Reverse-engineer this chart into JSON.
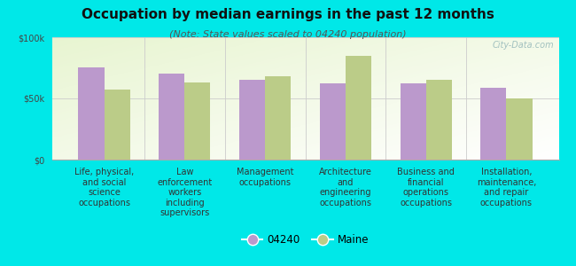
{
  "title": "Occupation by median earnings in the past 12 months",
  "subtitle": "(Note: State values scaled to 04240 population)",
  "categories": [
    "Life, physical,\nand social\nscience\noccupations",
    "Law\nenforcement\nworkers\nincluding\nsupervisors",
    "Management\noccupations",
    "Architecture\nand\nengineering\noccupations",
    "Business and\nfinancial\noperations\noccupations",
    "Installation,\nmaintenance,\nand repair\noccupations"
  ],
  "values_04240": [
    75000,
    70000,
    65000,
    62000,
    62000,
    59000
  ],
  "values_maine": [
    57000,
    63000,
    68000,
    85000,
    65000,
    50000
  ],
  "color_04240": "#bb99cc",
  "color_maine": "#bbcc88",
  "background_color": "#00e8e8",
  "ylim": [
    0,
    100000
  ],
  "yticks": [
    0,
    50000,
    100000
  ],
  "ytick_labels": [
    "$0",
    "$50k",
    "$100k"
  ],
  "watermark": "City-Data.com",
  "legend_04240": "04240",
  "legend_maine": "Maine",
  "title_fontsize": 11,
  "subtitle_fontsize": 8,
  "tick_fontsize": 7,
  "legend_fontsize": 8.5
}
